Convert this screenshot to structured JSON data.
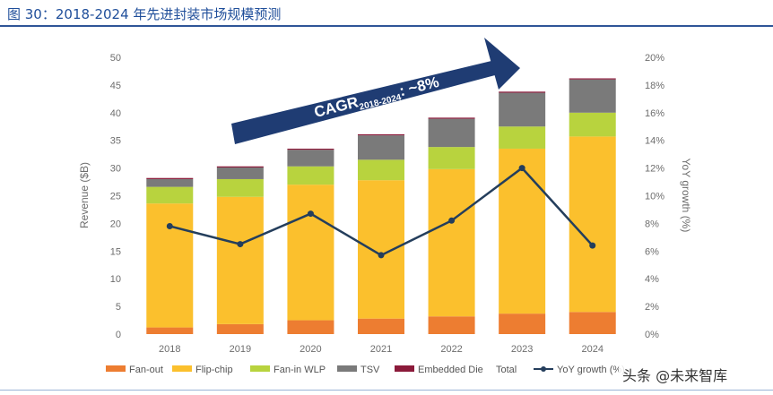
{
  "page": {
    "title": "图 30：2018-2024 年先进封装市场规模预测"
  },
  "watermark": "头条 @未来智库",
  "colors": {
    "fan_out": "#ed7d31",
    "flip_chip": "#fbc02d",
    "fan_in_wlp": "#b8d33e",
    "tsv": "#7a7a7a",
    "embedded_die": "#8b1a3a",
    "yoy_line": "#243e5c",
    "arrow": "#1f3c73",
    "title": "#1f4e9a"
  },
  "chart_data": {
    "type": "bar",
    "stacked": true,
    "categories": [
      "2018",
      "2019",
      "2020",
      "2021",
      "2022",
      "2023",
      "2024"
    ],
    "series": [
      {
        "name": "Fan-out",
        "color_key": "fan_out",
        "values": [
          1.2,
          1.8,
          2.5,
          2.8,
          3.2,
          3.7,
          4.0
        ]
      },
      {
        "name": "Flip-chip",
        "color_key": "flip_chip",
        "values": [
          22.4,
          23.0,
          24.5,
          25.0,
          26.6,
          29.8,
          31.7
        ]
      },
      {
        "name": "Fan-in WLP",
        "color_key": "fan_in_wlp",
        "values": [
          3.0,
          3.2,
          3.3,
          3.7,
          4.0,
          4.0,
          4.3
        ]
      },
      {
        "name": "TSV",
        "color_key": "tsv",
        "values": [
          1.4,
          2.1,
          3.0,
          4.4,
          5.1,
          6.1,
          6.0
        ]
      },
      {
        "name": "Embedded Die",
        "color_key": "embedded_die",
        "values": [
          0.2,
          0.2,
          0.2,
          0.2,
          0.2,
          0.2,
          0.2
        ]
      }
    ],
    "totals_legend": "Total",
    "line_series": {
      "name": "YoY growth (%)",
      "axis": "right",
      "values": [
        7.8,
        6.5,
        8.7,
        5.7,
        8.2,
        12.0,
        6.4
      ]
    },
    "ylabel": "Revenue ($B)",
    "ylabel_right": "YoY growth (%)",
    "ylim": [
      0,
      50
    ],
    "ylim_right": [
      0,
      20
    ],
    "yticks": [
      "0",
      "5",
      "10",
      "15",
      "20",
      "25",
      "30",
      "35",
      "40",
      "45",
      "50"
    ],
    "yticks_right": [
      "0%",
      "2%",
      "4%",
      "6%",
      "8%",
      "10%",
      "12%",
      "14%",
      "16%",
      "18%",
      "20%"
    ],
    "annotation": {
      "text": "CAGR",
      "subscript": "2018-2024",
      "suffix": ": ~8%"
    },
    "legend_position": "bottom",
    "grid": false
  }
}
